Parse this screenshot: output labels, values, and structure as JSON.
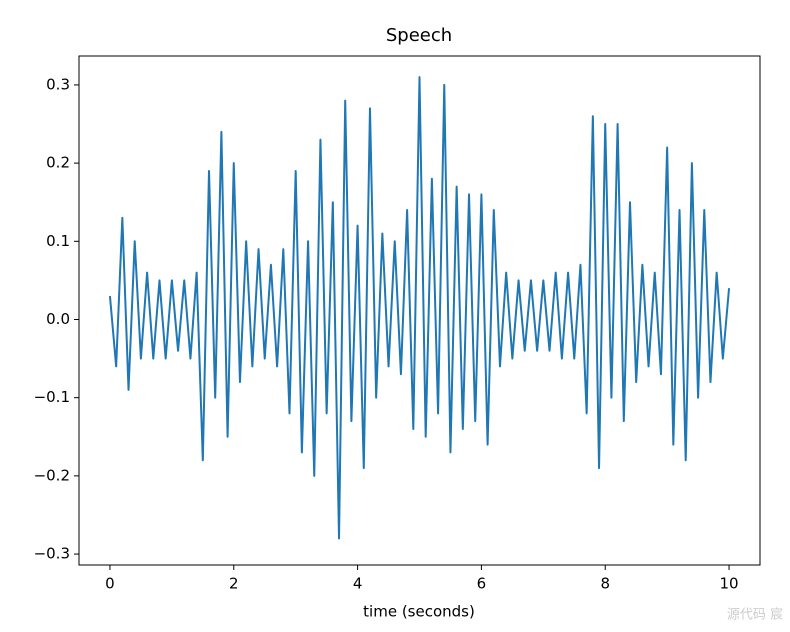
{
  "chart_data": {
    "type": "line",
    "title": "Speech",
    "x_label": "time (seconds)",
    "x": [
      0,
      0.1,
      0.2,
      0.3,
      0.4,
      0.5,
      0.6,
      0.7,
      0.8,
      0.9,
      1,
      1.1,
      1.2,
      1.3,
      1.4,
      1.5,
      1.6,
      1.7,
      1.8,
      1.9,
      2,
      2.1,
      2.2,
      2.3,
      2.4,
      2.5,
      2.6,
      2.7,
      2.8,
      2.9,
      3,
      3.1,
      3.2,
      3.3,
      3.4,
      3.5,
      3.6,
      3.7,
      3.8,
      3.9,
      4,
      4.1,
      4.2,
      4.3,
      4.4,
      4.5,
      4.6,
      4.7,
      4.8,
      4.9,
      5,
      5.1,
      5.2,
      5.3,
      5.4,
      5.5,
      5.6,
      5.7,
      5.8,
      5.9,
      6,
      6.1,
      6.2,
      6.3,
      6.4,
      6.5,
      6.6,
      6.7,
      6.8,
      6.9,
      7,
      7.1,
      7.2,
      7.3,
      7.4,
      7.5,
      7.6,
      7.7,
      7.8,
      7.9,
      8,
      8.1,
      8.2,
      8.3,
      8.4,
      8.5,
      8.6,
      8.7,
      8.8,
      8.9,
      9,
      9.1,
      9.2,
      9.3,
      9.4,
      9.5,
      9.6,
      9.7,
      9.8,
      9.9,
      10
    ],
    "series": [
      {
        "color": "#1f77b4",
        "values": [
          0.03,
          -0.06,
          0.13,
          -0.09,
          0.1,
          -0.05,
          0.06,
          -0.05,
          0.05,
          -0.05,
          0.05,
          -0.04,
          0.05,
          -0.05,
          0.06,
          -0.18,
          0.19,
          -0.1,
          0.24,
          -0.15,
          0.2,
          -0.08,
          0.1,
          -0.06,
          0.09,
          -0.05,
          0.07,
          -0.06,
          0.09,
          -0.12,
          0.19,
          -0.17,
          0.1,
          -0.2,
          0.23,
          -0.12,
          0.15,
          -0.28,
          0.28,
          -0.13,
          0.12,
          -0.19,
          0.27,
          -0.1,
          0.11,
          -0.06,
          0.1,
          -0.07,
          0.14,
          -0.14,
          0.31,
          -0.15,
          0.18,
          -0.12,
          0.3,
          -0.17,
          0.17,
          -0.14,
          0.16,
          -0.13,
          0.16,
          -0.16,
          0.14,
          -0.06,
          0.06,
          -0.05,
          0.05,
          -0.04,
          0.05,
          -0.04,
          0.05,
          -0.04,
          0.06,
          -0.05,
          0.06,
          -0.05,
          0.07,
          -0.12,
          0.26,
          -0.19,
          0.25,
          -0.1,
          0.25,
          -0.13,
          0.15,
          -0.08,
          0.07,
          -0.06,
          0.06,
          -0.07,
          0.22,
          -0.16,
          0.14,
          -0.18,
          0.2,
          -0.1,
          0.14,
          -0.08,
          0.06,
          -0.05,
          0.04
        ]
      }
    ],
    "xlim": [
      -0.5,
      10.5
    ],
    "xticks": [
      0,
      2,
      4,
      6,
      8,
      10
    ],
    "ylim": [
      -0.314,
      0.337
    ],
    "yticks": [
      {
        "value": -0.3,
        "label": "−0.3"
      },
      {
        "value": -0.2,
        "label": "−0.2"
      },
      {
        "value": -0.1,
        "label": "−0.1"
      },
      {
        "value": 0,
        "label": "0.0"
      },
      0.1,
      0.2,
      0.3
    ]
  },
  "watermark": "源代码 宸"
}
